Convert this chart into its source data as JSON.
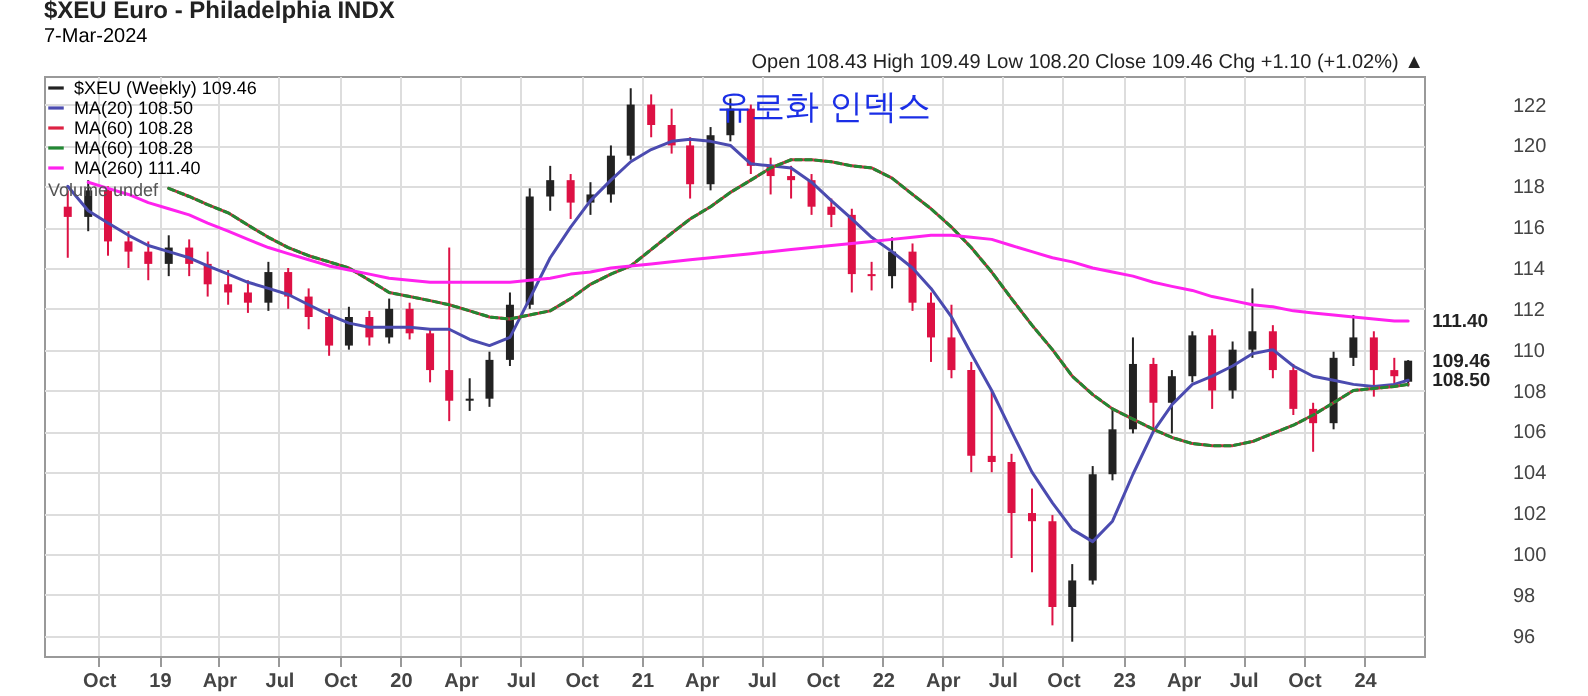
{
  "chart_data": {
    "type": "candlestick",
    "title": "$XEU Euro - Philadelphia INDX",
    "subtitle": "7-Mar-2024",
    "x": [
      "2018-08-15",
      "2018-09-15",
      "2018-10-15",
      "2018-11-15",
      "2018-12-15",
      "2019-01-15",
      "2019-02-15",
      "2019-03-15",
      "2019-04-15",
      "2019-05-15",
      "2019-06-15",
      "2019-07-15",
      "2019-08-15",
      "2019-09-15",
      "2019-10-15",
      "2019-11-15",
      "2019-12-15",
      "2020-01-15",
      "2020-02-15",
      "2020-03-15",
      "2020-04-15",
      "2020-05-15",
      "2020-06-15",
      "2020-07-15",
      "2020-08-15",
      "2020-09-15",
      "2020-10-15",
      "2020-11-15",
      "2020-12-15",
      "2021-01-15",
      "2021-02-15",
      "2021-03-15",
      "2021-04-15",
      "2021-05-15",
      "2021-06-15",
      "2021-07-15",
      "2021-08-15",
      "2021-09-15",
      "2021-10-15",
      "2021-11-15",
      "2021-12-15",
      "2022-01-15",
      "2022-02-15",
      "2022-03-15",
      "2022-04-15",
      "2022-05-15",
      "2022-06-15",
      "2022-07-15",
      "2022-08-15",
      "2022-09-15",
      "2022-10-15",
      "2022-11-15",
      "2022-12-15",
      "2023-01-15",
      "2023-02-15",
      "2023-03-15",
      "2023-04-15",
      "2023-05-15",
      "2023-06-15",
      "2023-07-15",
      "2023-08-15",
      "2023-09-15",
      "2023-10-15",
      "2023-11-15",
      "2023-12-15",
      "2024-01-15",
      "2024-02-15",
      "2024-03-07"
    ],
    "series": [
      {
        "name": "$XEU (Weekly) 109.46",
        "ohlc": [
          [
            117.0,
            117.8,
            114.5,
            116.5
          ],
          [
            116.5,
            118.3,
            115.8,
            117.8
          ],
          [
            117.8,
            118.0,
            114.6,
            115.3
          ],
          [
            115.3,
            115.8,
            114.0,
            114.8
          ],
          [
            114.8,
            115.3,
            113.4,
            114.2
          ],
          [
            114.2,
            115.6,
            113.6,
            115.0
          ],
          [
            115.0,
            115.4,
            113.6,
            114.2
          ],
          [
            114.2,
            114.8,
            112.6,
            113.2
          ],
          [
            113.2,
            113.9,
            112.2,
            112.8
          ],
          [
            112.8,
            113.4,
            111.8,
            112.3
          ],
          [
            112.3,
            114.3,
            111.9,
            113.8
          ],
          [
            113.8,
            114.0,
            112.0,
            112.6
          ],
          [
            112.6,
            113.0,
            111.0,
            111.6
          ],
          [
            111.6,
            112.0,
            109.7,
            110.2
          ],
          [
            110.2,
            112.1,
            110.0,
            111.6
          ],
          [
            111.6,
            111.9,
            110.2,
            110.6
          ],
          [
            110.6,
            112.5,
            110.3,
            112.0
          ],
          [
            112.0,
            112.3,
            110.5,
            110.8
          ],
          [
            110.8,
            111.0,
            108.4,
            109.0
          ],
          [
            109.0,
            115.0,
            106.5,
            107.5
          ],
          [
            107.5,
            108.6,
            107.0,
            107.6
          ],
          [
            107.6,
            109.9,
            107.2,
            109.5
          ],
          [
            109.5,
            112.8,
            109.2,
            112.2
          ],
          [
            112.2,
            117.9,
            112.0,
            117.5
          ],
          [
            117.5,
            119.0,
            116.8,
            118.3
          ],
          [
            118.3,
            118.6,
            116.4,
            117.2
          ],
          [
            117.2,
            118.2,
            116.6,
            117.6
          ],
          [
            117.6,
            120.0,
            117.2,
            119.5
          ],
          [
            119.5,
            122.8,
            119.3,
            122.0
          ],
          [
            122.0,
            122.5,
            120.4,
            121.0
          ],
          [
            121.0,
            121.8,
            119.6,
            120.0
          ],
          [
            120.0,
            120.4,
            117.4,
            118.1
          ],
          [
            118.1,
            120.9,
            117.8,
            120.5
          ],
          [
            120.5,
            122.3,
            120.2,
            121.8
          ],
          [
            121.8,
            122.0,
            118.6,
            119.0
          ],
          [
            119.0,
            119.4,
            117.6,
            118.5
          ],
          [
            118.5,
            119.0,
            117.4,
            118.3
          ],
          [
            118.3,
            118.6,
            116.6,
            117.0
          ],
          [
            117.0,
            117.4,
            116.0,
            116.6
          ],
          [
            116.6,
            116.9,
            112.8,
            113.7
          ],
          [
            113.7,
            114.3,
            112.9,
            113.6
          ],
          [
            113.6,
            115.5,
            113.0,
            114.8
          ],
          [
            114.8,
            115.2,
            111.9,
            112.3
          ],
          [
            112.3,
            112.8,
            109.4,
            110.6
          ],
          [
            110.6,
            112.2,
            108.6,
            109.0
          ],
          [
            109.0,
            109.4,
            104.0,
            104.8
          ],
          [
            104.8,
            108.0,
            104.0,
            104.5
          ],
          [
            104.5,
            104.9,
            99.8,
            102.0
          ],
          [
            102.0,
            103.2,
            99.1,
            101.6
          ],
          [
            101.6,
            101.9,
            96.5,
            97.4
          ],
          [
            97.4,
            99.5,
            95.7,
            98.7
          ],
          [
            98.7,
            104.3,
            98.5,
            103.9
          ],
          [
            103.9,
            107.1,
            103.6,
            106.1
          ],
          [
            106.1,
            110.6,
            105.9,
            109.3
          ],
          [
            109.3,
            109.6,
            106.1,
            107.4
          ],
          [
            107.4,
            109.0,
            105.9,
            108.7
          ],
          [
            108.7,
            110.9,
            108.4,
            110.7
          ],
          [
            110.7,
            111.0,
            107.1,
            108.0
          ],
          [
            108.0,
            110.4,
            107.6,
            110.0
          ],
          [
            110.0,
            113.0,
            109.6,
            110.9
          ],
          [
            110.9,
            111.2,
            108.6,
            109.0
          ],
          [
            109.0,
            109.3,
            106.8,
            107.1
          ],
          [
            107.1,
            107.4,
            105.0,
            106.4
          ],
          [
            106.4,
            109.9,
            106.1,
            109.6
          ],
          [
            109.6,
            111.7,
            109.2,
            110.6
          ],
          [
            110.6,
            110.9,
            107.7,
            109.0
          ],
          [
            109.0,
            109.6,
            108.2,
            108.7
          ],
          [
            108.43,
            109.49,
            108.2,
            109.46
          ]
        ],
        "color": "#222222",
        "colors": [
          "#dd1144",
          "#222222",
          "#dd1144",
          "#dd1144",
          "#dd1144",
          "#222222",
          "#dd1144",
          "#dd1144",
          "#dd1144",
          "#dd1144",
          "#222222",
          "#dd1144",
          "#dd1144",
          "#dd1144",
          "#222222",
          "#dd1144",
          "#222222",
          "#dd1144",
          "#dd1144",
          "#dd1144",
          "#222222",
          "#222222",
          "#222222",
          "#222222",
          "#222222",
          "#dd1144",
          "#222222",
          "#222222",
          "#222222",
          "#dd1144",
          "#dd1144",
          "#dd1144",
          "#222222",
          "#222222",
          "#dd1144",
          "#dd1144",
          "#dd1144",
          "#dd1144",
          "#dd1144",
          "#dd1144",
          "#dd1144",
          "#222222",
          "#dd1144",
          "#dd1144",
          "#dd1144",
          "#dd1144",
          "#dd1144",
          "#dd1144",
          "#dd1144",
          "#dd1144",
          "#222222",
          "#222222",
          "#222222",
          "#222222",
          "#dd1144",
          "#222222",
          "#222222",
          "#dd1144",
          "#222222",
          "#222222",
          "#dd1144",
          "#dd1144",
          "#dd1144",
          "#222222",
          "#222222",
          "#dd1144",
          "#dd1144",
          "#222222"
        ]
      },
      {
        "name": "MA(20) 108.50",
        "type": "line",
        "color": "#4b4bb0",
        "line_style": "solid",
        "values": [
          118.0,
          116.8,
          116.2,
          115.6,
          115.1,
          114.8,
          114.5,
          114.1,
          113.7,
          113.3,
          113.0,
          112.7,
          112.2,
          111.7,
          111.3,
          111.1,
          111.1,
          111.1,
          111.0,
          111.0,
          110.5,
          110.2,
          110.6,
          112.5,
          114.5,
          116.0,
          117.3,
          118.3,
          119.2,
          119.8,
          120.2,
          120.3,
          120.2,
          120.0,
          119.1,
          119.0,
          118.9,
          118.2,
          117.3,
          116.4,
          115.5,
          114.8,
          114.0,
          113.0,
          111.6,
          109.8,
          108.0,
          106.0,
          104.0,
          102.5,
          101.2,
          100.6,
          101.6,
          103.9,
          106.0,
          107.3,
          108.3,
          108.7,
          109.2,
          109.8,
          110.0,
          109.2,
          108.7,
          108.5,
          108.3,
          108.2,
          108.3,
          108.5
        ]
      },
      {
        "name": "MA(60) 108.28",
        "type": "line",
        "color": "#dd2244",
        "line_style": "solid",
        "values": [
          null,
          null,
          null,
          null,
          null,
          117.9,
          117.5,
          117.1,
          116.7,
          116.1,
          115.5,
          115.0,
          114.6,
          114.3,
          114.0,
          113.4,
          112.8,
          112.6,
          112.4,
          112.2,
          111.9,
          111.6,
          111.5,
          111.7,
          111.9,
          112.5,
          113.2,
          113.7,
          114.1,
          114.9,
          115.7,
          116.4,
          117.0,
          117.7,
          118.3,
          118.9,
          119.3,
          119.3,
          119.2,
          119.0,
          118.9,
          118.4,
          117.6,
          116.9,
          116.0,
          115.0,
          113.8,
          112.5,
          111.2,
          110.0,
          108.7,
          107.8,
          107.1,
          106.6,
          106.1,
          105.7,
          105.4,
          105.3,
          105.3,
          105.5,
          105.9,
          106.3,
          106.8,
          107.4,
          108.0,
          108.1,
          108.2,
          108.3
        ]
      },
      {
        "name": "MA(60) 108.28",
        "type": "line",
        "color": "#228833",
        "line_style": "dashed",
        "values": [
          null,
          null,
          null,
          null,
          null,
          117.9,
          117.5,
          117.1,
          116.7,
          116.1,
          115.5,
          115.0,
          114.6,
          114.3,
          114.0,
          113.4,
          112.8,
          112.6,
          112.4,
          112.2,
          111.9,
          111.6,
          111.5,
          111.7,
          111.9,
          112.5,
          113.2,
          113.7,
          114.1,
          114.9,
          115.7,
          116.4,
          117.0,
          117.7,
          118.3,
          118.9,
          119.3,
          119.3,
          119.2,
          119.0,
          118.9,
          118.4,
          117.6,
          116.9,
          116.0,
          115.0,
          113.8,
          112.5,
          111.2,
          110.0,
          108.7,
          107.8,
          107.1,
          106.6,
          106.1,
          105.7,
          105.4,
          105.3,
          105.3,
          105.5,
          105.9,
          106.3,
          106.8,
          107.4,
          108.0,
          108.1,
          108.2,
          108.3
        ]
      },
      {
        "name": "MA(260) 111.40",
        "type": "line",
        "color": "#ff22ee",
        "line_style": "solid",
        "values": [
          null,
          118.2,
          117.9,
          117.6,
          117.2,
          116.9,
          116.6,
          116.2,
          115.8,
          115.4,
          115.0,
          114.7,
          114.4,
          114.1,
          113.9,
          113.7,
          113.5,
          113.4,
          113.3,
          113.3,
          113.3,
          113.3,
          113.3,
          113.4,
          113.5,
          113.7,
          113.8,
          114.0,
          114.1,
          114.2,
          114.3,
          114.4,
          114.5,
          114.6,
          114.7,
          114.8,
          114.9,
          115.0,
          115.1,
          115.2,
          115.3,
          115.4,
          115.5,
          115.6,
          115.6,
          115.5,
          115.4,
          115.1,
          114.8,
          114.5,
          114.3,
          114.0,
          113.8,
          113.6,
          113.3,
          113.1,
          112.9,
          112.6,
          112.4,
          112.2,
          112.1,
          111.9,
          111.8,
          111.7,
          111.6,
          111.5,
          111.4,
          111.4
        ]
      }
    ],
    "annotations": [
      "Open 108.43 High 109.49 Low 108.20 Close 109.46 Chg +1.10 (+1.02%) ▲",
      "유로화 인덱스",
      "Volume undef",
      {
        "text": "111.40",
        "x": "2024-03-07",
        "y": 111.4
      },
      {
        "text": "109.46",
        "x": "2024-03-07",
        "y": 109.46
      },
      {
        "text": "108.50",
        "x": "2024-03-07",
        "y": 108.5
      }
    ],
    "xlim": [
      "2018-07-10",
      "2024-03-31"
    ],
    "ylim": [
      95,
      123.4
    ],
    "xticks": [
      {
        "value": "2018-10-01",
        "label": "Oct"
      },
      {
        "value": "2019-01-01",
        "label": "19"
      },
      {
        "value": "2019-04-01",
        "label": "Apr"
      },
      {
        "value": "2019-07-01",
        "label": "Jul"
      },
      {
        "value": "2019-10-01",
        "label": "Oct"
      },
      {
        "value": "2020-01-01",
        "label": "20"
      },
      {
        "value": "2020-04-01",
        "label": "Apr"
      },
      {
        "value": "2020-07-01",
        "label": "Jul"
      },
      {
        "value": "2020-10-01",
        "label": "Oct"
      },
      {
        "value": "2021-01-01",
        "label": "21"
      },
      {
        "value": "2021-04-01",
        "label": "Apr"
      },
      {
        "value": "2021-07-01",
        "label": "Jul"
      },
      {
        "value": "2021-10-01",
        "label": "Oct"
      },
      {
        "value": "2022-01-01",
        "label": "22"
      },
      {
        "value": "2022-04-01",
        "label": "Apr"
      },
      {
        "value": "2022-07-01",
        "label": "Jul"
      },
      {
        "value": "2022-10-01",
        "label": "Oct"
      },
      {
        "value": "2023-01-01",
        "label": "23"
      },
      {
        "value": "2023-04-01",
        "label": "Apr"
      },
      {
        "value": "2023-07-01",
        "label": "Jul"
      },
      {
        "value": "2023-10-01",
        "label": "Oct"
      },
      {
        "value": "2024-01-01",
        "label": "24"
      }
    ],
    "yticks": [
      96,
      98,
      100,
      102,
      104,
      106,
      108,
      110,
      112,
      114,
      116,
      118,
      120,
      122
    ],
    "grid": true,
    "legend": "top left"
  }
}
